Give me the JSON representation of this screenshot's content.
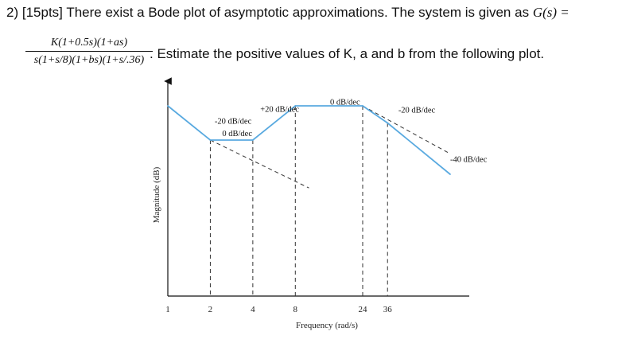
{
  "question": {
    "number": "2)",
    "points": "[15pts]",
    "intro": "There exist a Bode plot of asymptotic approximations. The system is given as",
    "gs_label": "G(s) =",
    "numerator": "K(1+0.5s)(1+as)",
    "denominator": "s(1+s/8)(1+bs)(1+s/.36)",
    "instruction": ". Estimate the positive values of K, a and b from the following plot."
  },
  "chart_data": {
    "type": "line",
    "title": "",
    "xlabel": "Frequency (rad/s)",
    "ylabel": "Magnitude (dB)",
    "x_scale": "log",
    "x_ticks": [
      1,
      2,
      4,
      8,
      24,
      36
    ],
    "x_tick_labels": [
      "1",
      "2",
      "4",
      "8",
      "24",
      "36"
    ],
    "grid": false,
    "series": [
      {
        "x": [
          1,
          2,
          4,
          8,
          24,
          36,
          100
        ],
        "y": [
          40,
          20,
          20,
          40,
          40,
          30,
          0
        ],
        "style": "solid",
        "color": "#5aaae0"
      },
      {
        "x": [
          2,
          10
        ],
        "y": [
          20,
          -8
        ],
        "style": "dashed",
        "color": "#333333"
      },
      {
        "x": [
          24,
          100
        ],
        "y": [
          40,
          12
        ],
        "style": "dashed",
        "color": "#333333"
      }
    ],
    "annotations": [
      {
        "text": "+20 dB/dec"
      },
      {
        "text": "0 dB/dec"
      },
      {
        "text": "-20 dB/dec"
      },
      {
        "text": "-20 dB/dec"
      },
      {
        "text": "0 dB/dec"
      },
      {
        "text": "-40 dB/dec"
      }
    ]
  }
}
